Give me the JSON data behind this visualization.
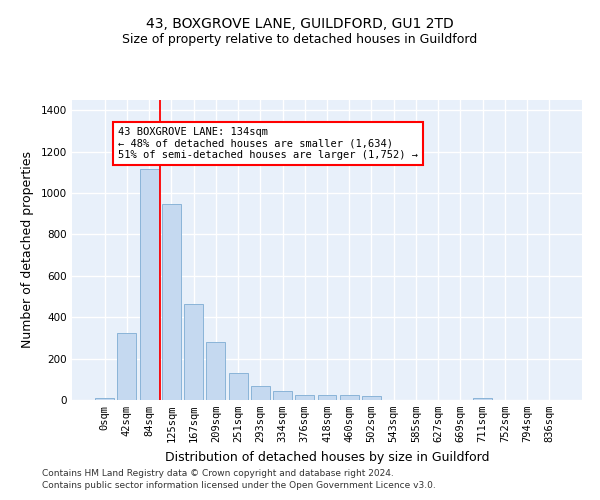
{
  "title_line1": "43, BOXGROVE LANE, GUILDFORD, GU1 2TD",
  "title_line2": "Size of property relative to detached houses in Guildford",
  "xlabel": "Distribution of detached houses by size in Guildford",
  "ylabel": "Number of detached properties",
  "footnote1": "Contains HM Land Registry data © Crown copyright and database right 2024.",
  "footnote2": "Contains public sector information licensed under the Open Government Licence v3.0.",
  "bar_labels": [
    "0sqm",
    "42sqm",
    "84sqm",
    "125sqm",
    "167sqm",
    "209sqm",
    "251sqm",
    "293sqm",
    "334sqm",
    "376sqm",
    "418sqm",
    "460sqm",
    "502sqm",
    "543sqm",
    "585sqm",
    "627sqm",
    "669sqm",
    "711sqm",
    "752sqm",
    "794sqm",
    "836sqm"
  ],
  "bar_values": [
    10,
    325,
    1115,
    945,
    465,
    280,
    130,
    70,
    43,
    25,
    25,
    25,
    18,
    0,
    0,
    0,
    0,
    12,
    0,
    0,
    0
  ],
  "bar_color": "#c5d9f0",
  "bar_edge_color": "#8ab4d8",
  "vline_x_pos": 3.5,
  "vline_color": "red",
  "annotation_text": "43 BOXGROVE LANE: 134sqm\n← 48% of detached houses are smaller (1,634)\n51% of semi-detached houses are larger (1,752) →",
  "ylim": [
    0,
    1450
  ],
  "yticks": [
    0,
    200,
    400,
    600,
    800,
    1000,
    1200,
    1400
  ],
  "bg_color": "#e8f0fa",
  "grid_color": "#ffffff",
  "title_fontsize": 10,
  "subtitle_fontsize": 9,
  "axis_label_fontsize": 9,
  "tick_fontsize": 7.5,
  "footnote_fontsize": 6.5
}
